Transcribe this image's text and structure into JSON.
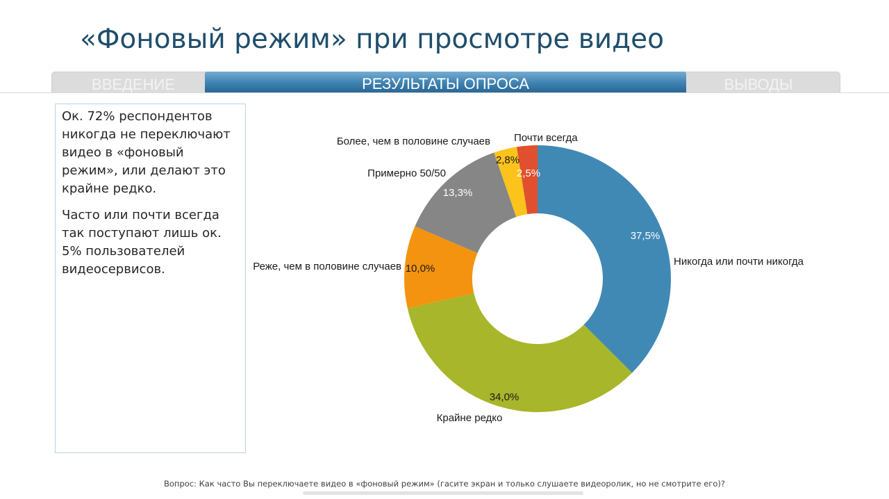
{
  "slide": {
    "title": "«Фоновый режим» при просмотре видео",
    "tabs": {
      "left": "ВВЕДЕНИЕ",
      "active": "РЕЗУЛЬТАТЫ ОПРОСА",
      "right": "ВЫВОДЫ"
    },
    "text": {
      "p1": "Ок. 72% респондентов никогда не переключают видео в «фоновый режим», или делают это крайне редко.",
      "p2": "Часто или почти всегда так поступают лишь ок. 5% пользователей видеосервисов."
    },
    "footer": "Вопрос: Как часто Вы переключаете видео в «фоновый режим» (гасите экран и только слушаете видеоролик, но не смотрите его)?"
  },
  "chart_data": {
    "type": "pie",
    "donut": true,
    "title": "",
    "categories": [
      "Никогда или почти никогда",
      "Крайне редко",
      "Реже, чем в половине случаев",
      "Примерно 50/50",
      "Более, чем в половине случаев",
      "Почти всегда"
    ],
    "values": [
      37.5,
      34.0,
      10.0,
      13.3,
      2.8,
      2.5
    ],
    "value_labels": [
      "37,5%",
      "34,0%",
      "10,0%",
      "13,3%",
      "2,8%",
      "2,5%"
    ],
    "colors": [
      "#4189b5",
      "#a7b62a",
      "#f3930f",
      "#868686",
      "#fbc31b",
      "#e0502e"
    ],
    "legend": "none"
  }
}
